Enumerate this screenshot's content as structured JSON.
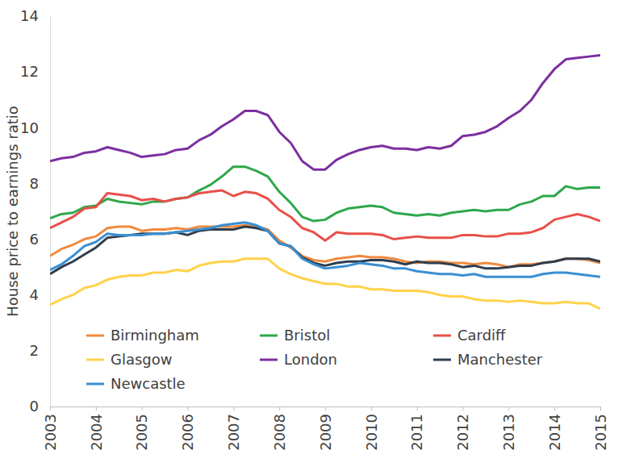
{
  "chart_data": {
    "type": "line",
    "y_label": "House price to earnings ratio",
    "x": [
      2003,
      2003.25,
      2003.5,
      2003.75,
      2004,
      2004.25,
      2004.5,
      2004.75,
      2005,
      2005.25,
      2005.5,
      2005.75,
      2006,
      2006.25,
      2006.5,
      2006.75,
      2007,
      2007.25,
      2007.5,
      2007.75,
      2008,
      2008.25,
      2008.5,
      2008.75,
      2009,
      2009.25,
      2009.5,
      2009.75,
      2010,
      2010.25,
      2010.5,
      2010.75,
      2011,
      2011.25,
      2011.5,
      2011.75,
      2012,
      2012.25,
      2012.5,
      2012.75,
      2013,
      2013.25,
      2013.5,
      2013.75,
      2014,
      2014.25,
      2014.5,
      2014.75,
      2015
    ],
    "xlim": [
      2003,
      2015
    ],
    "xticks": [
      2003,
      2004,
      2005,
      2006,
      2007,
      2008,
      2009,
      2010,
      2011,
      2012,
      2013,
      2014,
      2015
    ],
    "ylim": [
      0,
      14
    ],
    "yticks": [
      0,
      2,
      4,
      6,
      8,
      10,
      12,
      14
    ],
    "grid": false,
    "legend": "lower left",
    "series": [
      {
        "name": "Birmingham",
        "color": "#f08a3e",
        "values": [
          5.4,
          5.65,
          5.8,
          6.0,
          6.1,
          6.4,
          6.45,
          6.45,
          6.3,
          6.35,
          6.35,
          6.4,
          6.35,
          6.45,
          6.45,
          6.45,
          6.45,
          6.5,
          6.45,
          6.35,
          5.95,
          5.7,
          5.4,
          5.25,
          5.2,
          5.3,
          5.35,
          5.4,
          5.35,
          5.35,
          5.3,
          5.2,
          5.15,
          5.2,
          5.2,
          5.15,
          5.15,
          5.1,
          5.15,
          5.1,
          5.0,
          5.1,
          5.1,
          5.15,
          5.2,
          5.3,
          5.3,
          5.25,
          5.15
        ]
      },
      {
        "name": "Bristol",
        "color": "#2ea84a",
        "values": [
          6.75,
          6.9,
          6.95,
          7.15,
          7.2,
          7.45,
          7.35,
          7.3,
          7.25,
          7.35,
          7.35,
          7.45,
          7.5,
          7.75,
          7.95,
          8.25,
          8.6,
          8.6,
          8.45,
          8.25,
          7.7,
          7.3,
          6.8,
          6.65,
          6.7,
          6.95,
          7.1,
          7.15,
          7.2,
          7.15,
          6.95,
          6.9,
          6.85,
          6.9,
          6.85,
          6.95,
          7.0,
          7.05,
          7.0,
          7.05,
          7.05,
          7.25,
          7.35,
          7.55,
          7.55,
          7.9,
          7.8,
          7.85,
          7.85
        ]
      },
      {
        "name": "Cardiff",
        "color": "#e8504a",
        "values": [
          6.4,
          6.6,
          6.8,
          7.1,
          7.15,
          7.65,
          7.6,
          7.55,
          7.4,
          7.45,
          7.35,
          7.45,
          7.5,
          7.65,
          7.7,
          7.75,
          7.55,
          7.7,
          7.65,
          7.45,
          7.05,
          6.8,
          6.4,
          6.25,
          5.95,
          6.25,
          6.2,
          6.2,
          6.2,
          6.15,
          6.0,
          6.05,
          6.1,
          6.05,
          6.05,
          6.05,
          6.15,
          6.15,
          6.1,
          6.1,
          6.2,
          6.2,
          6.25,
          6.4,
          6.7,
          6.8,
          6.9,
          6.8,
          6.65
        ]
      },
      {
        "name": "Glasgow",
        "color": "#ffd24a",
        "values": [
          3.65,
          3.85,
          4.0,
          4.25,
          4.35,
          4.55,
          4.65,
          4.7,
          4.7,
          4.8,
          4.8,
          4.9,
          4.85,
          5.05,
          5.15,
          5.2,
          5.2,
          5.3,
          5.3,
          5.3,
          4.95,
          4.75,
          4.6,
          4.5,
          4.4,
          4.4,
          4.3,
          4.3,
          4.2,
          4.2,
          4.15,
          4.15,
          4.15,
          4.1,
          4.0,
          3.95,
          3.95,
          3.85,
          3.8,
          3.8,
          3.75,
          3.8,
          3.75,
          3.7,
          3.7,
          3.75,
          3.7,
          3.7,
          3.5
        ]
      },
      {
        "name": "London",
        "color": "#7b2fa0",
        "values": [
          8.8,
          8.9,
          8.95,
          9.1,
          9.15,
          9.3,
          9.2,
          9.1,
          8.95,
          9.0,
          9.05,
          9.2,
          9.25,
          9.55,
          9.75,
          10.05,
          10.3,
          10.6,
          10.6,
          10.45,
          9.85,
          9.45,
          8.8,
          8.5,
          8.5,
          8.85,
          9.05,
          9.2,
          9.3,
          9.35,
          9.25,
          9.25,
          9.2,
          9.3,
          9.25,
          9.35,
          9.7,
          9.75,
          9.85,
          10.05,
          10.35,
          10.6,
          11.0,
          11.6,
          12.1,
          12.45,
          12.5,
          12.55,
          12.6
        ]
      },
      {
        "name": "Manchester",
        "color": "#2f3e4e",
        "values": [
          4.75,
          5.0,
          5.2,
          5.45,
          5.7,
          6.05,
          6.1,
          6.15,
          6.2,
          6.2,
          6.2,
          6.25,
          6.15,
          6.3,
          6.35,
          6.35,
          6.35,
          6.45,
          6.4,
          6.3,
          5.85,
          5.75,
          5.35,
          5.15,
          5.05,
          5.15,
          5.2,
          5.2,
          5.25,
          5.25,
          5.2,
          5.1,
          5.2,
          5.15,
          5.15,
          5.1,
          5.0,
          5.05,
          4.95,
          4.95,
          5.0,
          5.05,
          5.05,
          5.15,
          5.2,
          5.3,
          5.3,
          5.3,
          5.2
        ]
      },
      {
        "name": "Newcastle",
        "color": "#3a8fd1",
        "values": [
          4.9,
          5.1,
          5.4,
          5.75,
          5.9,
          6.2,
          6.15,
          6.15,
          6.15,
          6.2,
          6.2,
          6.25,
          6.3,
          6.35,
          6.4,
          6.5,
          6.55,
          6.6,
          6.5,
          6.3,
          5.85,
          5.75,
          5.3,
          5.1,
          4.95,
          5.0,
          5.05,
          5.15,
          5.1,
          5.05,
          4.95,
          4.95,
          4.85,
          4.8,
          4.75,
          4.75,
          4.7,
          4.75,
          4.65,
          4.65,
          4.65,
          4.65,
          4.65,
          4.75,
          4.8,
          4.8,
          4.75,
          4.7,
          4.65
        ]
      }
    ]
  }
}
